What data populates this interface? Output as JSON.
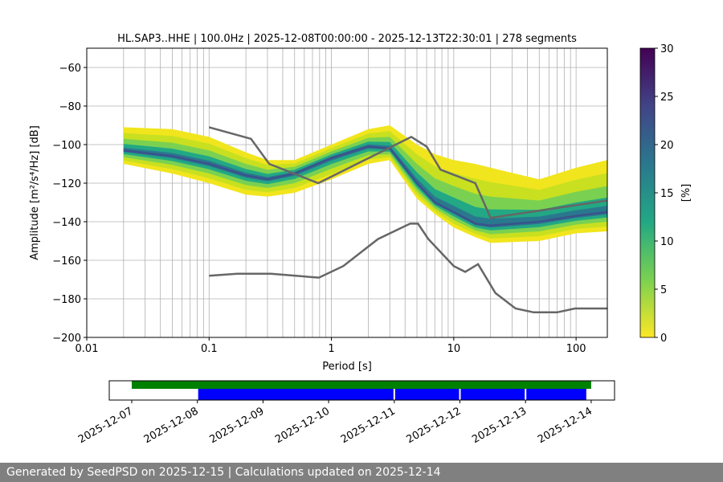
{
  "chart_data": {
    "type": "heatmap",
    "title": "HL.SAP3..HHE | 100.0Hz | 2025-12-08T00:00:00 - 2025-12-13T22:30:01 | 278 segments",
    "xlabel": "Period [s]",
    "ylabel": "Amplitude [m²/s⁴/Hz] [dB]",
    "xscale": "log",
    "xlim": [
      0.01,
      180
    ],
    "ylim": [
      -200,
      -50
    ],
    "grid": true,
    "x_ticks": [
      "0.01",
      "0.1",
      "1",
      "10",
      "100"
    ],
    "y_ticks": [
      "−200",
      "−180",
      "−160",
      "−140",
      "−120",
      "−100",
      "−80",
      "−60"
    ],
    "colorbar": {
      "label": "[%]",
      "range": [
        0,
        30
      ],
      "ticks": [
        "0",
        "5",
        "10",
        "15",
        "20",
        "25",
        "30"
      ],
      "colormap": "viridis_r"
    },
    "distribution": {
      "period": [
        0.02,
        0.05,
        0.1,
        0.2,
        0.3,
        0.5,
        1,
        2,
        3,
        5,
        7,
        10,
        15,
        20,
        50,
        100,
        180
      ],
      "mode": [
        -103,
        -106,
        -110,
        -116,
        -118,
        -115,
        -107,
        -101,
        -102,
        -120,
        -130,
        -135,
        -141,
        -142,
        -140,
        -137,
        -135
      ],
      "upper": [
        -91,
        -92,
        -96,
        -104,
        -108,
        -108,
        -100,
        -92,
        -90,
        -100,
        -105,
        -108,
        -110,
        -112,
        -118,
        -112,
        -108
      ],
      "lower": [
        -110,
        -115,
        -120,
        -126,
        -127,
        -125,
        -118,
        -110,
        -108,
        -128,
        -136,
        -143,
        -148,
        -151,
        -150,
        -146,
        -145
      ]
    },
    "noise_models": [
      {
        "model": "high",
        "color": "#666666",
        "period": [
          0.1,
          0.22,
          0.31,
          0.78,
          4.5,
          6,
          7.8,
          15,
          20,
          180
        ],
        "db": [
          -91,
          -97,
          -110,
          -120,
          -96,
          -101,
          -113,
          -120,
          -138,
          -129
        ]
      },
      {
        "model": "low",
        "color": "#666666",
        "period": [
          0.1,
          0.17,
          0.32,
          0.79,
          1.25,
          2.4,
          4.4,
          5.1,
          6.2,
          10,
          12.4,
          15.8,
          21.9,
          32,
          45,
          70,
          98,
          157,
          180
        ],
        "db": [
          -168,
          -167,
          -167,
          -169,
          -163,
          -149,
          -141,
          -141,
          -149,
          -163,
          -166,
          -162,
          -177,
          -185,
          -187,
          -187,
          -185,
          -185,
          -185
        ]
      }
    ]
  },
  "timeline": {
    "ticks": [
      "2025-12-07",
      "2025-12-08",
      "2025-12-09",
      "2025-12-10",
      "2025-12-11",
      "2025-12-12",
      "2025-12-13",
      "2025-12-14"
    ],
    "data_span": {
      "start": "2025-12-07",
      "end": "2025-12-14",
      "color": "#008000"
    },
    "psd_segments": {
      "color": "#0000ff",
      "ranges": [
        [
          "2025-12-08",
          "2025-12-11"
        ],
        [
          "2025-12-11",
          "2025-12-12"
        ],
        [
          "2025-12-12",
          "2025-12-13"
        ],
        [
          "2025-12-13",
          "2025-12-13T22:30"
        ]
      ]
    }
  },
  "footer": "Generated by SeedPSD on 2025-12-15 | Calculations updated on 2025-12-14"
}
